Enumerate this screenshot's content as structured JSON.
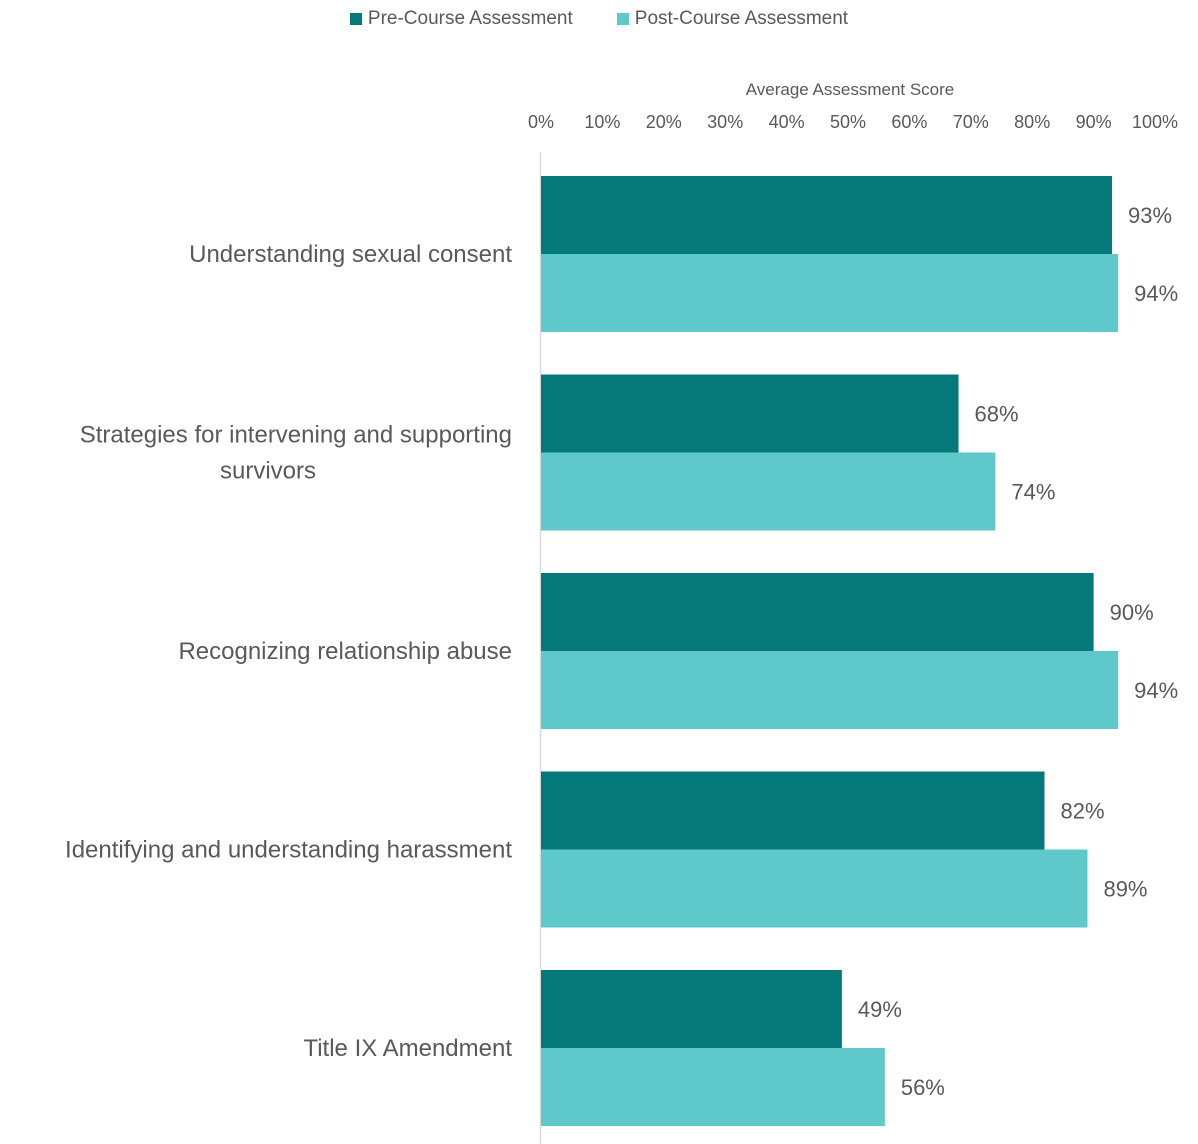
{
  "legend": {
    "pre_label": "Pre-Course Assessment",
    "post_label": "Post-Course Assessment"
  },
  "colors": {
    "pre": "#05797A",
    "post": "#5EC8CB",
    "text": "#595959",
    "axis": "#D9D9D9"
  },
  "chart_data": {
    "type": "bar",
    "orientation": "horizontal",
    "xlabel": "Average Assessment Score",
    "xlim": [
      0,
      100
    ],
    "x_ticks": [
      "0%",
      "10%",
      "20%",
      "30%",
      "40%",
      "50%",
      "60%",
      "70%",
      "80%",
      "90%",
      "100%"
    ],
    "categories": [
      [
        "Understanding sexual consent"
      ],
      [
        "Strategies for intervening and supporting",
        "survivors"
      ],
      [
        "Recognizing relationship abuse"
      ],
      [
        "Identifying and understanding harassment"
      ],
      [
        "Title IX Amendment"
      ]
    ],
    "series": [
      {
        "name": "Pre-Course Assessment",
        "values": [
          93,
          68,
          90,
          82,
          49
        ],
        "labels": [
          "93%",
          "68%",
          "90%",
          "82%",
          "49%"
        ]
      },
      {
        "name": "Post-Course Assessment",
        "values": [
          94,
          74,
          94,
          89,
          56
        ],
        "labels": [
          "94%",
          "74%",
          "94%",
          "89%",
          "56%"
        ]
      }
    ],
    "axis_position": "top",
    "grid": false,
    "legend_position": "top-center"
  }
}
